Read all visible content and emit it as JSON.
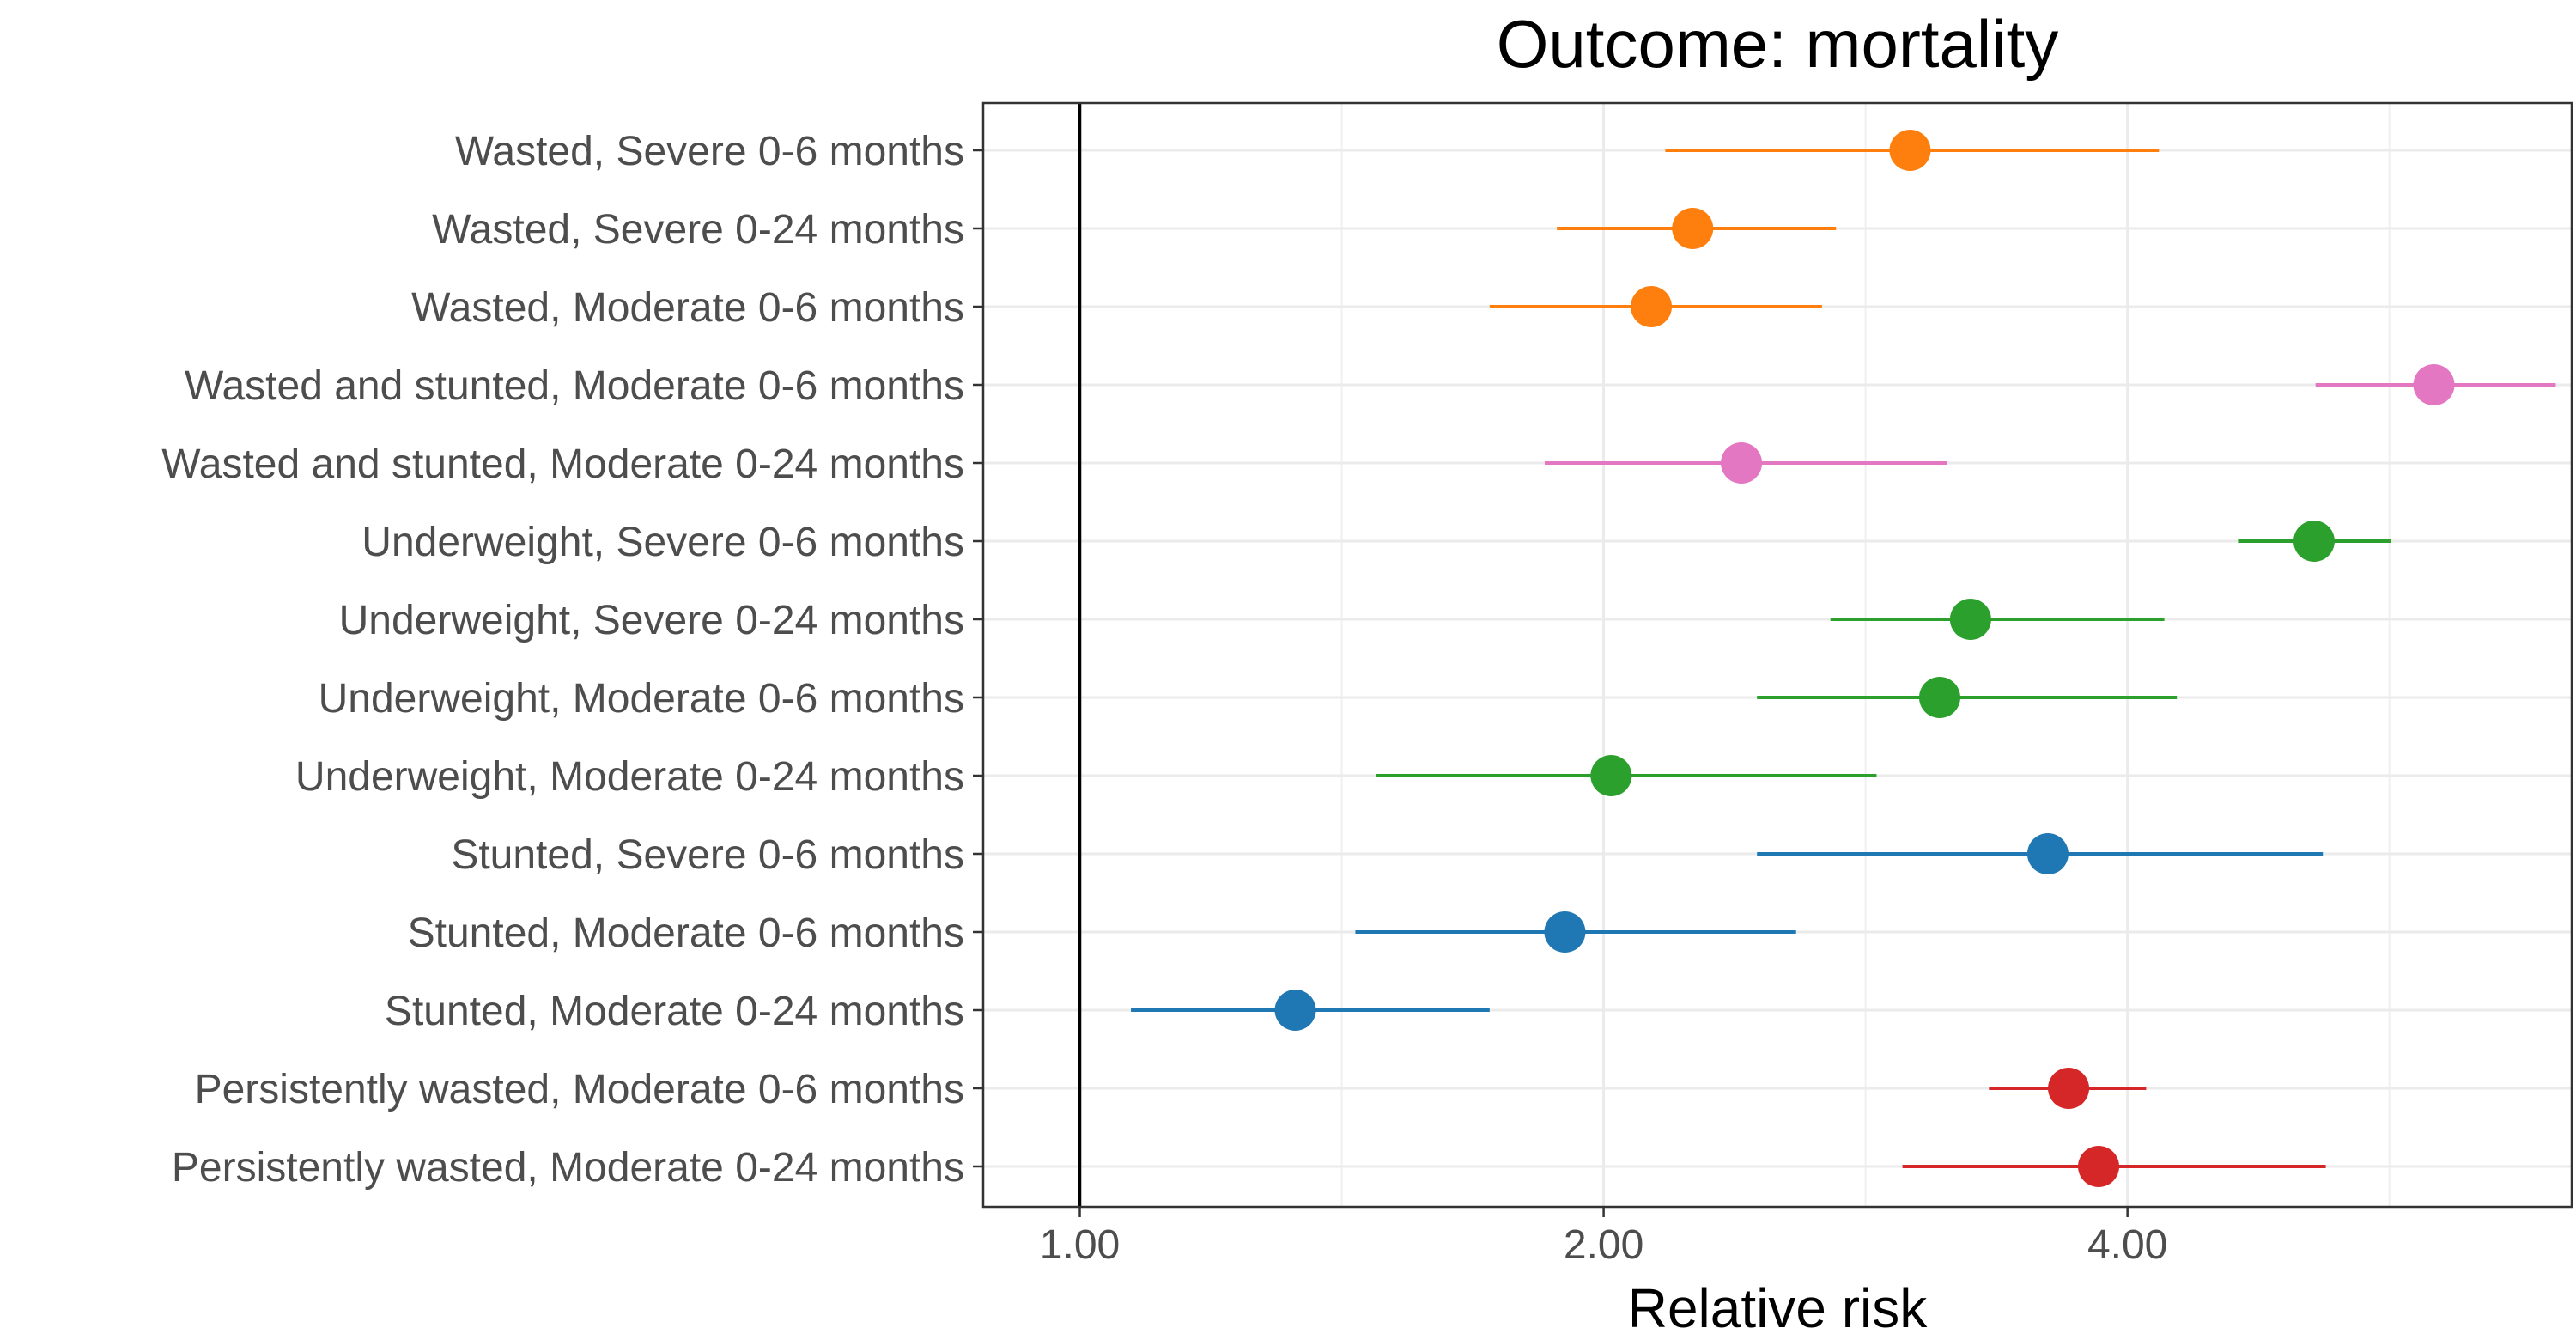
{
  "chart_data": {
    "type": "scatter",
    "title": "Outcome: mortality",
    "xlabel": "Relative risk",
    "ylabel": "",
    "x_scale": "log2",
    "xlim": [
      0.88,
      7.2
    ],
    "x_ticks": [
      1,
      2,
      4
    ],
    "x_tick_labels": [
      "1.00",
      "2.00",
      "4.00"
    ],
    "reference_line": 1,
    "grid": true,
    "legend": "none",
    "rows": [
      {
        "label": "Wasted, Severe 0-6 months",
        "estimate": 3.0,
        "lower": 2.17,
        "upper": 4.17,
        "color": "#ff7f0e"
      },
      {
        "label": "Wasted, Severe 0-24 months",
        "estimate": 2.25,
        "lower": 1.88,
        "upper": 2.72,
        "color": "#ff7f0e"
      },
      {
        "label": "Wasted, Moderate 0-6 months",
        "estimate": 2.13,
        "lower": 1.72,
        "upper": 2.67,
        "color": "#ff7f0e"
      },
      {
        "label": "Wasted and stunted, Moderate 0-6 months",
        "estimate": 6.0,
        "lower": 5.13,
        "upper": 7.05,
        "color": "#e377c2"
      },
      {
        "label": "Wasted and stunted, Moderate 0-24 months",
        "estimate": 2.4,
        "lower": 1.85,
        "upper": 3.15,
        "color": "#e377c2"
      },
      {
        "label": "Underweight, Severe 0-6 months",
        "estimate": 5.12,
        "lower": 4.63,
        "upper": 5.67,
        "color": "#2ca02c"
      },
      {
        "label": "Underweight, Severe 0-24 months",
        "estimate": 3.25,
        "lower": 2.7,
        "upper": 4.2,
        "color": "#2ca02c"
      },
      {
        "label": "Underweight, Moderate 0-6 months",
        "estimate": 3.12,
        "lower": 2.45,
        "upper": 4.27,
        "color": "#2ca02c"
      },
      {
        "label": "Underweight, Moderate 0-24 months",
        "estimate": 2.02,
        "lower": 1.48,
        "upper": 2.87,
        "color": "#2ca02c"
      },
      {
        "label": "Stunted, Severe 0-6 months",
        "estimate": 3.6,
        "lower": 2.45,
        "upper": 5.18,
        "color": "#1f77b4"
      },
      {
        "label": "Stunted, Moderate 0-6 months",
        "estimate": 1.9,
        "lower": 1.44,
        "upper": 2.58,
        "color": "#1f77b4"
      },
      {
        "label": "Stunted, Moderate 0-24 months",
        "estimate": 1.33,
        "lower": 1.07,
        "upper": 1.72,
        "color": "#1f77b4"
      },
      {
        "label": "Persistently wasted, Moderate 0-6 months",
        "estimate": 3.7,
        "lower": 3.33,
        "upper": 4.1,
        "color": "#d62728"
      },
      {
        "label": "Persistently wasted, Moderate 0-24 months",
        "estimate": 3.85,
        "lower": 2.97,
        "upper": 5.2,
        "color": "#d62728"
      }
    ]
  }
}
